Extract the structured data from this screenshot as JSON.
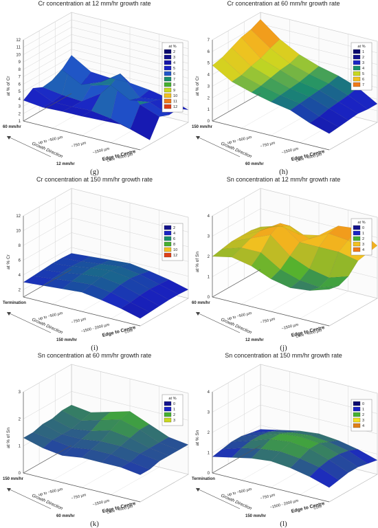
{
  "chart_data": [
    {
      "panel": "(g)",
      "type": "surface",
      "title": "Cr concentration at 12 mm/hr growth rate",
      "zlabel": "at % of Cr",
      "zlim": [
        1,
        12
      ],
      "zticks": [
        "1",
        "2",
        "3",
        "4",
        "5",
        "6",
        "7",
        "8",
        "9",
        "10",
        "11",
        "12"
      ],
      "xlabel": "Edge to Centre",
      "xticks": [
        "up to ~500 µm",
        "~750 µm",
        "~1500 µm",
        "Core ~4500 µm"
      ],
      "ylabel": "Growth Direction",
      "yticks": [
        "60 mm/hr",
        "12 mm/hr"
      ],
      "legend": {
        "title": "at %",
        "entries": [
          "2",
          "3",
          "4",
          "5",
          "6",
          "7",
          "8",
          "9",
          "10",
          "11",
          "12"
        ],
        "colors": [
          "#0a0a6e",
          "#12128c",
          "#1515a8",
          "#1a24c4",
          "#2055c8",
          "#1a8f6a",
          "#45b030",
          "#c8d820",
          "#f2c020",
          "#f07a18",
          "#e04018"
        ]
      },
      "grid": true,
      "surface": [
        [
          6.2,
          4.6,
          4.4,
          4.4,
          4.1,
          3.6,
          2.7
        ],
        [
          5.0,
          3.6,
          4.6,
          6.4,
          3.8,
          4.2,
          3.6
        ],
        [
          4.3,
          7.9,
          4.9,
          5.6,
          4.2,
          4.6,
          3.5
        ],
        [
          4.1,
          3.7,
          3.5,
          5.2,
          8.2,
          5.0,
          4.0
        ],
        [
          4.7,
          3.5,
          3.5,
          3.6,
          3.2,
          2.4,
          1.6
        ],
        [
          3.8,
          3.5,
          3.6,
          3.6,
          3.7,
          3.8,
          3.7
        ]
      ]
    },
    {
      "panel": "(h)",
      "type": "surface",
      "title": "Cr concentration at 60 mm/hr growth rate",
      "zlabel": "at % of Cr",
      "zlim": [
        0,
        7
      ],
      "zticks": [
        "0",
        "1",
        "2",
        "3",
        "4",
        "5",
        "6",
        "7"
      ],
      "xlabel": "Edge to Centre",
      "xticks": [
        "up to ~500 µm",
        "~750 µm",
        "~1500 µm",
        "Core ~4500 µm"
      ],
      "ylabel": "Growth Direction",
      "yticks": [
        "150 mm/hr",
        "60 mm/hr"
      ],
      "legend": {
        "title": "at %",
        "entries": [
          "1",
          "2",
          "3",
          "4",
          "5",
          "6",
          "7"
        ],
        "colors": [
          "#0a0a6e",
          "#12128c",
          "#1a24c4",
          "#1a8f6a",
          "#c8d820",
          "#f2c020",
          "#f07a18"
        ]
      },
      "grid": true,
      "surface": [
        [
          6.4,
          5.1,
          4.2,
          3.6,
          3.2,
          2.6,
          1.6
        ],
        [
          6.0,
          4.8,
          3.9,
          3.4,
          3.0,
          2.4,
          1.6
        ],
        [
          5.8,
          4.4,
          3.8,
          3.2,
          2.9,
          2.3,
          1.7
        ],
        [
          5.4,
          4.2,
          3.6,
          3.1,
          2.8,
          2.2,
          1.6
        ],
        [
          5.0,
          3.9,
          3.4,
          3.0,
          2.7,
          2.0,
          1.5
        ],
        [
          4.8,
          3.8,
          3.3,
          2.9,
          2.6,
          1.9,
          1.4
        ]
      ]
    },
    {
      "panel": "(i)",
      "type": "surface",
      "title": "Cr concentration at 150 mm/hr growth rate",
      "zlabel": "at % Cr",
      "zlim": [
        1,
        12
      ],
      "zticks": [
        "2",
        "4",
        "6",
        "8",
        "10",
        "12"
      ],
      "xlabel": "Edge to Centre",
      "xticks": [
        "up to ~500 µm",
        "~750 µm",
        "~1500 - 2000 µm",
        "Core"
      ],
      "ylabel": "Growth Direction",
      "yticks": [
        "Termination",
        "150 mm/hr"
      ],
      "legend": {
        "title": "",
        "entries": [
          "2",
          "4",
          "6",
          "8",
          "10",
          "12"
        ],
        "colors": [
          "#12128c",
          "#1a24c4",
          "#1a8f6a",
          "#45b030",
          "#f2c020",
          "#e04018"
        ]
      },
      "grid": true,
      "surface": [
        [
          3.2,
          3.4,
          3.6,
          3.8,
          3.4,
          2.9,
          2.2
        ],
        [
          3.3,
          3.5,
          3.8,
          4.1,
          3.7,
          3.0,
          2.3
        ],
        [
          3.3,
          3.6,
          4.0,
          4.3,
          3.9,
          3.1,
          2.3
        ],
        [
          3.2,
          3.5,
          3.9,
          4.2,
          3.8,
          3.0,
          2.2
        ],
        [
          3.1,
          3.4,
          3.7,
          3.9,
          3.5,
          2.8,
          2.1
        ],
        [
          3.0,
          3.2,
          3.4,
          3.6,
          3.2,
          2.7,
          2.0
        ]
      ]
    },
    {
      "panel": "(j)",
      "type": "surface",
      "title": "Sn concentration at 12 mm/hr growth rate",
      "zlabel": "at % of Sn",
      "zlim": [
        0,
        4
      ],
      "zticks": [
        "0",
        "1",
        "2",
        "3",
        "4"
      ],
      "xlabel": "Edge to Centre",
      "xticks": [
        "up to ~500 µm",
        "~750 µm",
        "~1500 µm",
        "Core ~4500 µm"
      ],
      "ylabel": "Growth Direction",
      "yticks": [
        "60 mm/hr",
        "12 mm/hr"
      ],
      "legend": {
        "title": "at %",
        "entries": [
          "0",
          "1",
          "2",
          "3",
          "4"
        ],
        "colors": [
          "#12128c",
          "#1a24c4",
          "#45b030",
          "#f2c020",
          "#f07a18"
        ]
      },
      "grid": true,
      "surface": [
        [
          2.1,
          2.4,
          2.2,
          2.4,
          3.1,
          3.2,
          2.6
        ],
        [
          2.2,
          2.6,
          2.9,
          2.5,
          3.0,
          2.9,
          2.5
        ],
        [
          2.2,
          2.7,
          3.3,
          2.6,
          2.6,
          2.6,
          2.4
        ],
        [
          2.2,
          2.6,
          3.0,
          2.2,
          1.8,
          1.6,
          1.9
        ],
        [
          2.1,
          2.4,
          2.4,
          1.8,
          1.5,
          1.4,
          1.7
        ],
        [
          2.0,
          2.2,
          2.0,
          1.6,
          1.4,
          1.5,
          1.8
        ]
      ]
    },
    {
      "panel": "(k)",
      "type": "surface",
      "title": "Sn concentration at 60 mm/hr growth rate",
      "zlabel": "at % of Sn",
      "zlim": [
        0,
        3
      ],
      "zticks": [
        "0",
        "1",
        "2",
        "3"
      ],
      "xlabel": "Edge to Centre",
      "xticks": [
        "up to ~500 µm",
        "~750 µm",
        "~1500 µm",
        "Core ~4500 µm"
      ],
      "ylabel": "Growth Direction",
      "yticks": [
        "150 mm/hr",
        "60 mm/hr"
      ],
      "legend": {
        "title": "at %",
        "entries": [
          "0",
          "1",
          "2",
          "3"
        ],
        "colors": [
          "#12128c",
          "#1a24c4",
          "#45b030",
          "#c8d820"
        ]
      },
      "grid": true,
      "surface": [
        [
          1.5,
          1.4,
          1.6,
          1.8,
          1.5,
          1.2,
          1.1
        ],
        [
          1.5,
          1.3,
          1.5,
          1.7,
          1.5,
          1.2,
          1.1
        ],
        [
          1.4,
          1.2,
          1.3,
          1.5,
          1.4,
          1.2,
          1.1
        ],
        [
          1.4,
          1.2,
          1.2,
          1.3,
          1.3,
          1.2,
          1.1
        ],
        [
          1.3,
          1.2,
          1.1,
          1.2,
          1.2,
          1.1,
          1.0
        ],
        [
          1.3,
          1.1,
          1.0,
          1.1,
          1.1,
          1.1,
          1.0
        ]
      ]
    },
    {
      "panel": "(l)",
      "type": "surface",
      "title": "Sn concentration at 150 mm/hr growth rate",
      "zlabel": "at % Sn",
      "zlim": [
        0,
        4
      ],
      "zticks": [
        "0",
        "1",
        "2",
        "3",
        "4"
      ],
      "xlabel": "Edge to Centre",
      "xticks": [
        "up to ~500 µm",
        "~750 µm",
        "~1500 - 2000 µm",
        "Core"
      ],
      "ylabel": "Growth Direction",
      "yticks": [
        "Termination",
        "150 mm/hr"
      ],
      "legend": {
        "title": "",
        "entries": [
          "0",
          "1",
          "2",
          "3",
          "4"
        ],
        "colors": [
          "#0a0a6e",
          "#1a24c4",
          "#45b030",
          "#f2e020",
          "#e08018"
        ]
      },
      "grid": true,
      "surface": [
        [
          0.8,
          1.0,
          1.2,
          1.3,
          1.2,
          1.0,
          0.7
        ],
        [
          0.9,
          1.2,
          1.4,
          1.5,
          1.4,
          1.2,
          0.8
        ],
        [
          1.0,
          1.3,
          1.6,
          1.7,
          1.6,
          1.3,
          0.9
        ],
        [
          1.0,
          1.3,
          1.6,
          1.7,
          1.6,
          1.3,
          0.9
        ],
        [
          0.9,
          1.2,
          1.4,
          1.5,
          1.4,
          1.2,
          0.8
        ],
        [
          0.8,
          1.0,
          1.2,
          1.3,
          1.2,
          1.0,
          0.7
        ]
      ]
    }
  ]
}
